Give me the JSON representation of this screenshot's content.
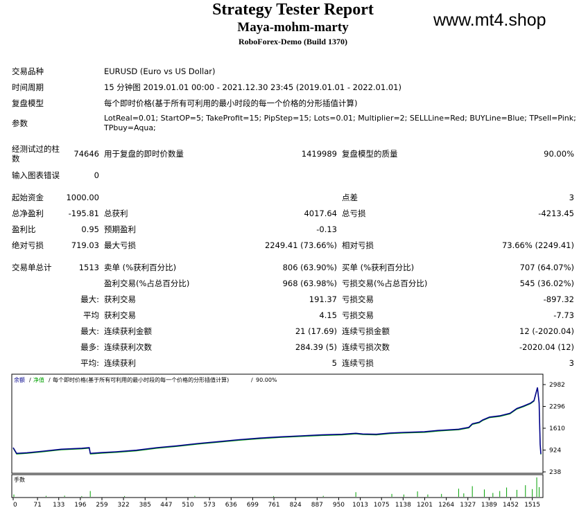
{
  "header": {
    "title": "Strategy Tester Report",
    "ea_name": "Maya-mohm-marty",
    "server": "RoboForex-Demo (Build 1370)",
    "site": "www.mt4.shop"
  },
  "info": {
    "symbol_label": "交易品种",
    "symbol_value": "EURUSD (Euro vs US Dollar)",
    "period_label": "时间周期",
    "period_value": "15 分钟图 2019.01.01 00:00 - 2021.12.30 23:45 (2019.01.01 - 2022.01.01)",
    "model_label": "复盘模型",
    "model_value": "每个即时价格(基于所有可利用的最小时段的每一个价格的分形插值计算)",
    "params_label": "参数",
    "params_line1": "LotReal=0.01; StartOP=5; TakeProfit=15; PipStep=15; Lots=0.01; Multiplier=2; SELLLine=Red; BUYLine=Blue; TPsell=Pink;",
    "params_line2": "TPbuy=Aqua;"
  },
  "stats": {
    "bars_label_1": "经测试过的柱",
    "bars_label_2": "数",
    "bars_value": "74646",
    "ticks_label": "用于复盘的即时价数量",
    "ticks_value": "1419989",
    "quality_label": "复盘模型的质量",
    "quality_value": "90.00%",
    "mismatch_label": "输入图表错误",
    "mismatch_value": "0",
    "deposit_label": "起始资金",
    "deposit_value": "1000.00",
    "spread_label": "点差",
    "spread_value": "3",
    "net_label": "总净盈利",
    "net_value": "-195.81",
    "gross_profit_label": "总获利",
    "gross_profit_value": "4017.64",
    "gross_loss_label": "总亏损",
    "gross_loss_value": "-4213.45",
    "pf_label": "盈利比",
    "pf_value": "0.95",
    "payoff_label": "预期盈利",
    "payoff_value": "-0.13",
    "abs_dd_label": "绝对亏损",
    "abs_dd_value": "719.03",
    "max_dd_label": "最大亏损",
    "max_dd_value": "2249.41 (73.66%)",
    "rel_dd_label": "相对亏损",
    "rel_dd_value": "73.66% (2249.41)",
    "total_trades_label": "交易单总计",
    "total_trades_value": "1513",
    "short_label": "卖单 (%获利百分比)",
    "short_value": "806 (63.90%)",
    "long_label": "买单 (%获利百分比)",
    "long_value": "707 (64.07%)",
    "profit_trades_label": "盈利交易(%占总百分比)",
    "profit_trades_value": "968 (63.98%)",
    "loss_trades_label": "亏损交易(%占总百分比)",
    "loss_trades_value": "545 (36.02%)",
    "largest_label": "最大:",
    "largest_profit_label": "获利交易",
    "largest_profit_value": "191.37",
    "largest_loss_label": "亏损交易",
    "largest_loss_value": "-897.32",
    "average_label": "平均",
    "average_profit_label": "获利交易",
    "average_profit_value": "4.15",
    "average_loss_label": "亏损交易",
    "average_loss_value": "-7.73",
    "max_consec_label": "最大:",
    "max_consec_wins_label": "连续获利金额",
    "max_consec_wins_value": "21 (17.69)",
    "max_consec_losses_label": "连续亏损金额",
    "max_consec_losses_value": "12 (-2020.04)",
    "maximal_label": "最多:",
    "maximal_profit_label": "连续获利次数",
    "maximal_profit_value": "284.39 (5)",
    "maximal_loss_label": "连续亏损次数",
    "maximal_loss_value": "-2020.04 (12)",
    "avg_consec_label": "平均:",
    "avg_consec_wins_label": "连续获利",
    "avg_consec_wins_value": "5",
    "avg_consec_losses_label": "连续亏损",
    "avg_consec_losses_value": "3"
  },
  "chart_data": {
    "type": "line",
    "legend": {
      "balance": "余额",
      "equity": "净值",
      "model": "每个即时价格(基于所有可利用的最小时段的每一个价格的分形插值计算)",
      "quality": "90.00%"
    },
    "volume_label": "手数",
    "y_ticks": [
      2982,
      2296,
      1610,
      924,
      238
    ],
    "ylim": [
      238,
      2982
    ],
    "x_ticks": [
      0,
      71,
      133,
      196,
      259,
      322,
      385,
      447,
      510,
      573,
      636,
      699,
      761,
      824,
      887,
      950,
      1013,
      1075,
      1138,
      1201,
      1264,
      1327,
      1389,
      1452,
      1515
    ],
    "xlim": [
      0,
      1540
    ],
    "colors": {
      "balance": "#00008b",
      "equity": "#00a000",
      "volume": "#00a000"
    },
    "balance": [
      [
        0,
        1000
      ],
      [
        10,
        820
      ],
      [
        40,
        840
      ],
      [
        80,
        880
      ],
      [
        140,
        950
      ],
      [
        200,
        980
      ],
      [
        222,
        1000
      ],
      [
        225,
        820
      ],
      [
        260,
        845
      ],
      [
        300,
        870
      ],
      [
        360,
        920
      ],
      [
        420,
        1000
      ],
      [
        480,
        1060
      ],
      [
        540,
        1130
      ],
      [
        600,
        1190
      ],
      [
        660,
        1250
      ],
      [
        720,
        1300
      ],
      [
        780,
        1340
      ],
      [
        840,
        1370
      ],
      [
        900,
        1400
      ],
      [
        960,
        1420
      ],
      [
        1000,
        1450
      ],
      [
        1020,
        1430
      ],
      [
        1060,
        1420
      ],
      [
        1100,
        1460
      ],
      [
        1140,
        1480
      ],
      [
        1200,
        1500
      ],
      [
        1240,
        1540
      ],
      [
        1300,
        1580
      ],
      [
        1330,
        1640
      ],
      [
        1340,
        1750
      ],
      [
        1360,
        1800
      ],
      [
        1370,
        1870
      ],
      [
        1390,
        1960
      ],
      [
        1420,
        2000
      ],
      [
        1450,
        2080
      ],
      [
        1470,
        2230
      ],
      [
        1490,
        2310
      ],
      [
        1510,
        2400
      ],
      [
        1520,
        2480
      ],
      [
        1530,
        2890
      ],
      [
        1535,
        2400
      ],
      [
        1538,
        1100
      ],
      [
        1540,
        800
      ]
    ],
    "volume": [
      [
        2,
        0.12
      ],
      [
        96,
        0.05
      ],
      [
        150,
        0.06
      ],
      [
        200,
        0.04
      ],
      [
        225,
        0.3
      ],
      [
        325,
        0.04
      ],
      [
        530,
        0.05
      ],
      [
        760,
        0.04
      ],
      [
        905,
        0.05
      ],
      [
        1000,
        0.24
      ],
      [
        1105,
        0.15
      ],
      [
        1140,
        0.12
      ],
      [
        1180,
        0.28
      ],
      [
        1210,
        0.12
      ],
      [
        1250,
        0.15
      ],
      [
        1300,
        0.42
      ],
      [
        1315,
        0.18
      ],
      [
        1340,
        0.55
      ],
      [
        1375,
        0.38
      ],
      [
        1400,
        0.2
      ],
      [
        1420,
        0.3
      ],
      [
        1440,
        0.48
      ],
      [
        1470,
        0.36
      ],
      [
        1495,
        0.6
      ],
      [
        1515,
        0.4
      ],
      [
        1528,
        1.0
      ],
      [
        1535,
        0.5
      ]
    ]
  }
}
